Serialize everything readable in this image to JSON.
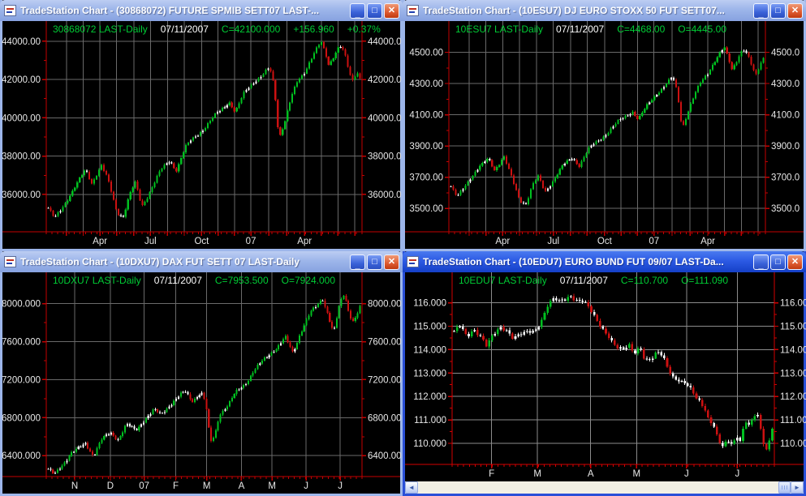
{
  "controls": {
    "minimize": "_",
    "maximize": "□",
    "close": "✕"
  },
  "scrollbar": {
    "left_glyph": "◄",
    "right_glyph": "►"
  },
  "windows": [
    {
      "title": "TradeStation Chart - (30868072) FUTURE SPMIB SETT07 LAST-...",
      "info": {
        "sym": "30868072 LAST-Daily",
        "date": "07/11/2007",
        "c": "C=42100.000",
        "x1": "+156.960",
        "x2": "+0.37%"
      }
    },
    {
      "title": "TradeStation Chart - (10ESU7) DJ EURO STOXX 50 FUT SETT07...",
      "info": {
        "sym": "10ESU7 LAST-Daily",
        "date": "07/11/2007",
        "c": "C=4468.00",
        "x1": "O=4445.00",
        "x2": ""
      }
    },
    {
      "title": "TradeStation Chart - (10DXU7) DAX FUT SETT 07 LAST-Daily",
      "info": {
        "sym": "10DXU7 LAST-Daily",
        "date": "07/11/2007",
        "c": "C=7953.500",
        "x1": "O=7924.000",
        "x2": ""
      }
    },
    {
      "title": "TradeStation Chart - (10EDU7) EURO BUND FUT 09/07 LAST-Da...",
      "info": {
        "sym": "10EDU7 LAST-Daily",
        "date": "07/11/2007",
        "c": "C=110.700",
        "x1": "O=111.090",
        "x2": ""
      }
    }
  ],
  "chart_data": [
    {
      "type": "candlestick",
      "symbol": "30868072 FUTURE SPMIB SETT07",
      "interval": "Daily",
      "last_close": 42100.0,
      "change": 156.96,
      "change_pct": "+0.37%",
      "y_range": [
        34050,
        45050
      ],
      "y_ticks": [
        {
          "v": 44000,
          "left": "44000.00",
          "right": "44000.0"
        },
        {
          "v": 42000,
          "left": "42000.00",
          "right": "42000.0"
        },
        {
          "v": 40000,
          "left": "40000.00",
          "right": "40000.0"
        },
        {
          "v": 38000,
          "left": "38000.00",
          "right": "38000.0"
        },
        {
          "v": 36000,
          "left": "36000.00",
          "right": "36000.0"
        }
      ],
      "x_ticks": [
        {
          "label": "Apr",
          "pos": 0.17
        },
        {
          "label": "Jul",
          "pos": 0.33
        },
        {
          "label": "Oct",
          "pos": 0.492
        },
        {
          "label": "07",
          "pos": 0.648
        },
        {
          "label": "Apr",
          "pos": 0.818
        }
      ],
      "v_grid": [
        0.064,
        0.117,
        0.17,
        0.223,
        0.277,
        0.33,
        0.384,
        0.437,
        0.492,
        0.544,
        0.596,
        0.648,
        0.705,
        0.762,
        0.818,
        0.871,
        0.924,
        0.977
      ],
      "path": [
        [
          0,
          35300
        ],
        [
          0.02,
          34750
        ],
        [
          0.04,
          35200
        ],
        [
          0.06,
          35700
        ],
        [
          0.09,
          36500
        ],
        [
          0.12,
          37300
        ],
        [
          0.14,
          36600
        ],
        [
          0.17,
          37500
        ],
        [
          0.19,
          36800
        ],
        [
          0.22,
          35100
        ],
        [
          0.24,
          34850
        ],
        [
          0.26,
          35900
        ],
        [
          0.28,
          36600
        ],
        [
          0.3,
          35400
        ],
        [
          0.33,
          36300
        ],
        [
          0.36,
          37200
        ],
        [
          0.39,
          37800
        ],
        [
          0.41,
          37300
        ],
        [
          0.44,
          38400
        ],
        [
          0.47,
          39000
        ],
        [
          0.5,
          39500
        ],
        [
          0.53,
          40000
        ],
        [
          0.56,
          40500
        ],
        [
          0.58,
          40900
        ],
        [
          0.6,
          40300
        ],
        [
          0.63,
          41300
        ],
        [
          0.66,
          41900
        ],
        [
          0.69,
          42300
        ],
        [
          0.71,
          42600
        ],
        [
          0.725,
          41600
        ],
        [
          0.74,
          38900
        ],
        [
          0.76,
          39900
        ],
        [
          0.78,
          41100
        ],
        [
          0.8,
          41900
        ],
        [
          0.82,
          42300
        ],
        [
          0.84,
          43000
        ],
        [
          0.86,
          43600
        ],
        [
          0.875,
          43950
        ],
        [
          0.89,
          43300
        ],
        [
          0.9,
          42750
        ],
        [
          0.92,
          43350
        ],
        [
          0.935,
          43800
        ],
        [
          0.95,
          43400
        ],
        [
          0.965,
          42400
        ],
        [
          0.975,
          41900
        ],
        [
          0.99,
          42450
        ],
        [
          1,
          42100
        ]
      ],
      "n_candles": 130,
      "vol": 1.0,
      "plot_left": 54,
      "right_col": 47,
      "colors": {
        "up": "#00c020",
        "down": "#cc1111",
        "flat": "#ffffff",
        "frame": "#c40000",
        "grid": "#6a6a6a",
        "label": "#e8e8e8"
      }
    },
    {
      "type": "candlestick",
      "symbol": "10ESU7 DJ EURO STOXX 50 FUT SETT07",
      "interval": "Daily",
      "last_close": 4468.0,
      "open": 4445.0,
      "y_range": [
        3350,
        4700
      ],
      "y_ticks": [
        {
          "v": 4500,
          "left": "4500.00",
          "right": "4500.0"
        },
        {
          "v": 4300,
          "left": "4300.00",
          "right": "4300.0"
        },
        {
          "v": 4100,
          "left": "4100.00",
          "right": "4100.0"
        },
        {
          "v": 3900,
          "left": "3900.00",
          "right": "3900.0"
        },
        {
          "v": 3700,
          "left": "3700.00",
          "right": "3700.0"
        },
        {
          "v": 3500,
          "left": "3500.00",
          "right": "3500.0"
        }
      ],
      "x_ticks": [
        {
          "label": "Apr",
          "pos": 0.17
        },
        {
          "label": "Jul",
          "pos": 0.33
        },
        {
          "label": "Oct",
          "pos": 0.492
        },
        {
          "label": "07",
          "pos": 0.648
        },
        {
          "label": "Apr",
          "pos": 0.818
        }
      ],
      "v_grid": [
        0.064,
        0.117,
        0.17,
        0.223,
        0.277,
        0.33,
        0.384,
        0.437,
        0.492,
        0.544,
        0.596,
        0.648,
        0.705,
        0.762,
        0.818,
        0.871,
        0.924,
        0.977
      ],
      "path": [
        [
          0,
          3640
        ],
        [
          0.02,
          3570
        ],
        [
          0.04,
          3630
        ],
        [
          0.06,
          3690
        ],
        [
          0.09,
          3760
        ],
        [
          0.12,
          3820
        ],
        [
          0.14,
          3750
        ],
        [
          0.17,
          3830
        ],
        [
          0.19,
          3720
        ],
        [
          0.22,
          3560
        ],
        [
          0.24,
          3530
        ],
        [
          0.26,
          3640
        ],
        [
          0.28,
          3700
        ],
        [
          0.3,
          3610
        ],
        [
          0.33,
          3690
        ],
        [
          0.36,
          3770
        ],
        [
          0.39,
          3830
        ],
        [
          0.41,
          3780
        ],
        [
          0.44,
          3870
        ],
        [
          0.47,
          3930
        ],
        [
          0.5,
          3990
        ],
        [
          0.53,
          4040
        ],
        [
          0.56,
          4090
        ],
        [
          0.58,
          4130
        ],
        [
          0.6,
          4070
        ],
        [
          0.63,
          4160
        ],
        [
          0.66,
          4240
        ],
        [
          0.69,
          4300
        ],
        [
          0.71,
          4340
        ],
        [
          0.725,
          4240
        ],
        [
          0.74,
          4010
        ],
        [
          0.76,
          4130
        ],
        [
          0.78,
          4230
        ],
        [
          0.8,
          4310
        ],
        [
          0.82,
          4360
        ],
        [
          0.84,
          4430
        ],
        [
          0.86,
          4490
        ],
        [
          0.875,
          4530
        ],
        [
          0.89,
          4450
        ],
        [
          0.9,
          4390
        ],
        [
          0.92,
          4470
        ],
        [
          0.935,
          4520
        ],
        [
          0.95,
          4480
        ],
        [
          0.965,
          4400
        ],
        [
          0.975,
          4350
        ],
        [
          0.99,
          4430
        ],
        [
          1,
          4468
        ]
      ],
      "n_candles": 130,
      "vol": 1.0,
      "plot_left": 54,
      "right_col": 47,
      "colors": {
        "up": "#00c020",
        "down": "#cc1111",
        "flat": "#ffffff",
        "frame": "#c40000",
        "grid": "#6a6a6a",
        "label": "#e8e8e8"
      }
    },
    {
      "type": "candlestick",
      "symbol": "10DXU7 DAX FUT SETT 07",
      "interval": "Daily",
      "last_close": 7953.5,
      "open": 7924.0,
      "y_range": [
        6180,
        8330
      ],
      "y_ticks": [
        {
          "v": 8000,
          "left": "8000.000",
          "right": "8000.00"
        },
        {
          "v": 7600,
          "left": "7600.000",
          "right": "7600.00"
        },
        {
          "v": 7200,
          "left": "7200.000",
          "right": "7200.00"
        },
        {
          "v": 6800,
          "left": "6800.000",
          "right": "6800.00"
        },
        {
          "v": 6400,
          "left": "6400.000",
          "right": "6400.00"
        }
      ],
      "x_ticks": [
        {
          "label": "N",
          "pos": 0.09
        },
        {
          "label": "D",
          "pos": 0.203
        },
        {
          "label": "07",
          "pos": 0.31
        },
        {
          "label": "F",
          "pos": 0.41
        },
        {
          "label": "M",
          "pos": 0.508
        },
        {
          "label": "A",
          "pos": 0.618
        },
        {
          "label": "M",
          "pos": 0.715
        },
        {
          "label": "J",
          "pos": 0.823
        },
        {
          "label": "J",
          "pos": 0.931
        }
      ],
      "v_grid": [
        0.09,
        0.203,
        0.31,
        0.41,
        0.508,
        0.618,
        0.715,
        0.823,
        0.931
      ],
      "path": [
        [
          0,
          6260
        ],
        [
          0.02,
          6200
        ],
        [
          0.05,
          6320
        ],
        [
          0.07,
          6420
        ],
        [
          0.1,
          6480
        ],
        [
          0.12,
          6530
        ],
        [
          0.145,
          6400
        ],
        [
          0.17,
          6560
        ],
        [
          0.2,
          6640
        ],
        [
          0.225,
          6580
        ],
        [
          0.25,
          6720
        ],
        [
          0.28,
          6660
        ],
        [
          0.31,
          6800
        ],
        [
          0.34,
          6870
        ],
        [
          0.36,
          6820
        ],
        [
          0.39,
          6950
        ],
        [
          0.41,
          7000
        ],
        [
          0.44,
          7060
        ],
        [
          0.46,
          6980
        ],
        [
          0.49,
          7080
        ],
        [
          0.505,
          6950
        ],
        [
          0.52,
          6520
        ],
        [
          0.535,
          6620
        ],
        [
          0.55,
          6850
        ],
        [
          0.58,
          6950
        ],
        [
          0.6,
          7050
        ],
        [
          0.63,
          7150
        ],
        [
          0.66,
          7300
        ],
        [
          0.69,
          7400
        ],
        [
          0.72,
          7500
        ],
        [
          0.74,
          7560
        ],
        [
          0.76,
          7650
        ],
        [
          0.785,
          7480
        ],
        [
          0.81,
          7700
        ],
        [
          0.84,
          7900
        ],
        [
          0.865,
          8000
        ],
        [
          0.88,
          8060
        ],
        [
          0.9,
          7850
        ],
        [
          0.915,
          7680
        ],
        [
          0.935,
          8000
        ],
        [
          0.95,
          8120
        ],
        [
          0.965,
          7900
        ],
        [
          0.98,
          7800
        ],
        [
          1,
          7953
        ]
      ],
      "n_candles": 135,
      "vol": 1.15,
      "plot_left": 54,
      "right_col": 47,
      "colors": {
        "up": "#00c020",
        "down": "#cc1111",
        "flat": "#ffffff",
        "frame": "#c40000",
        "grid": "#6a6a6a",
        "label": "#e8e8e8"
      }
    },
    {
      "type": "candlestick",
      "symbol": "10EDU7 EURO BUND FUT 09/07",
      "interval": "Daily",
      "last_close": 110.7,
      "open": 111.09,
      "y_range": [
        109.1,
        117.3
      ],
      "y_ticks": [
        {
          "v": 116,
          "left": "116.000",
          "right": "116.00"
        },
        {
          "v": 115,
          "left": "115.000",
          "right": "115.00"
        },
        {
          "v": 114,
          "left": "114.000",
          "right": "114.00"
        },
        {
          "v": 113,
          "left": "113.000",
          "right": "113.00"
        },
        {
          "v": 112,
          "left": "112.000",
          "right": "112.00"
        },
        {
          "v": 111,
          "left": "111.000",
          "right": "111.00"
        },
        {
          "v": 110,
          "left": "110.000",
          "right": "110.00"
        }
      ],
      "x_ticks": [
        {
          "label": "F",
          "pos": 0.1225
        },
        {
          "label": "M",
          "pos": 0.265
        },
        {
          "label": "A",
          "pos": 0.43
        },
        {
          "label": "M",
          "pos": 0.5725
        },
        {
          "label": "J",
          "pos": 0.7275
        },
        {
          "label": "J",
          "pos": 0.885
        }
      ],
      "v_grid": [
        0.1225,
        0.265,
        0.43,
        0.5725,
        0.7275,
        0.885
      ],
      "path": [
        [
          0,
          114.8
        ],
        [
          0.02,
          115.0
        ],
        [
          0.04,
          114.5
        ],
        [
          0.06,
          114.9
        ],
        [
          0.085,
          114.6
        ],
        [
          0.1,
          114.15
        ],
        [
          0.12,
          114.5
        ],
        [
          0.145,
          114.95
        ],
        [
          0.165,
          114.9
        ],
        [
          0.185,
          114.55
        ],
        [
          0.21,
          114.6
        ],
        [
          0.235,
          114.7
        ],
        [
          0.255,
          114.85
        ],
        [
          0.275,
          115.35
        ],
        [
          0.295,
          115.95
        ],
        [
          0.315,
          116.1
        ],
        [
          0.33,
          115.95
        ],
        [
          0.35,
          116.15
        ],
        [
          0.365,
          116.4
        ],
        [
          0.385,
          116.2
        ],
        [
          0.405,
          116.05
        ],
        [
          0.425,
          115.65
        ],
        [
          0.445,
          115.25
        ],
        [
          0.465,
          115.0
        ],
        [
          0.485,
          114.7
        ],
        [
          0.5,
          114.3
        ],
        [
          0.515,
          114.0
        ],
        [
          0.53,
          113.85
        ],
        [
          0.55,
          114.15
        ],
        [
          0.565,
          113.9
        ],
        [
          0.585,
          114.25
        ],
        [
          0.6,
          113.6
        ],
        [
          0.62,
          113.5
        ],
        [
          0.64,
          113.8
        ],
        [
          0.655,
          113.7
        ],
        [
          0.67,
          113.35
        ],
        [
          0.685,
          112.95
        ],
        [
          0.7,
          112.8
        ],
        [
          0.715,
          112.6
        ],
        [
          0.73,
          112.45
        ],
        [
          0.745,
          112.2
        ],
        [
          0.76,
          111.95
        ],
        [
          0.775,
          111.8
        ],
        [
          0.79,
          111.5
        ],
        [
          0.8,
          111.05
        ],
        [
          0.815,
          110.8
        ],
        [
          0.83,
          110.05
        ],
        [
          0.845,
          109.8
        ],
        [
          0.86,
          110.1
        ],
        [
          0.875,
          110.0
        ],
        [
          0.89,
          110.35
        ],
        [
          0.9,
          110.15
        ],
        [
          0.915,
          110.95
        ],
        [
          0.93,
          110.7
        ],
        [
          0.945,
          111.15
        ],
        [
          0.955,
          111.2
        ],
        [
          0.965,
          110.45
        ],
        [
          0.975,
          109.9
        ],
        [
          0.985,
          109.75
        ],
        [
          0.995,
          110.4
        ],
        [
          1,
          110.7
        ]
      ],
      "n_candles": 110,
      "vol": 1.7,
      "plot_left": 58,
      "right_col": 36,
      "colors": {
        "up": "#00c020",
        "down": "#cc1111",
        "flat": "#ffffff",
        "frame": "#d40000",
        "grid": "#8c8c8c",
        "label": "#e8e8e8"
      }
    }
  ]
}
